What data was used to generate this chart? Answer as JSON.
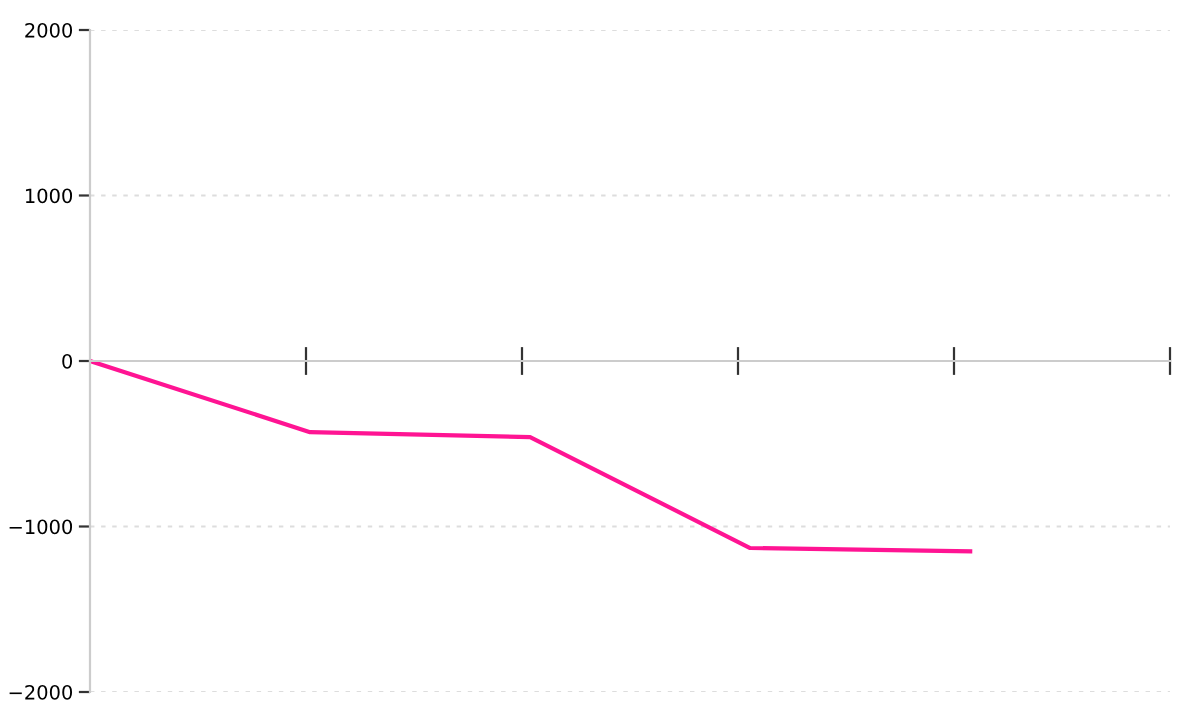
{
  "chart_data": {
    "type": "line",
    "categories": [
      null,
      null,
      null,
      null,
      null
    ],
    "series": [
      {
        "color": "#ff1493",
        "values": [
          0,
          -430,
          -460,
          -1130,
          -1150
        ]
      }
    ],
    "ylim": [
      -2000,
      2000
    ],
    "yticks": [
      -2000,
      -1000,
      0,
      1000,
      2000
    ],
    "tick_labels": "y",
    "grid": "y",
    "marker": "none",
    "line_style": "solid"
  }
}
